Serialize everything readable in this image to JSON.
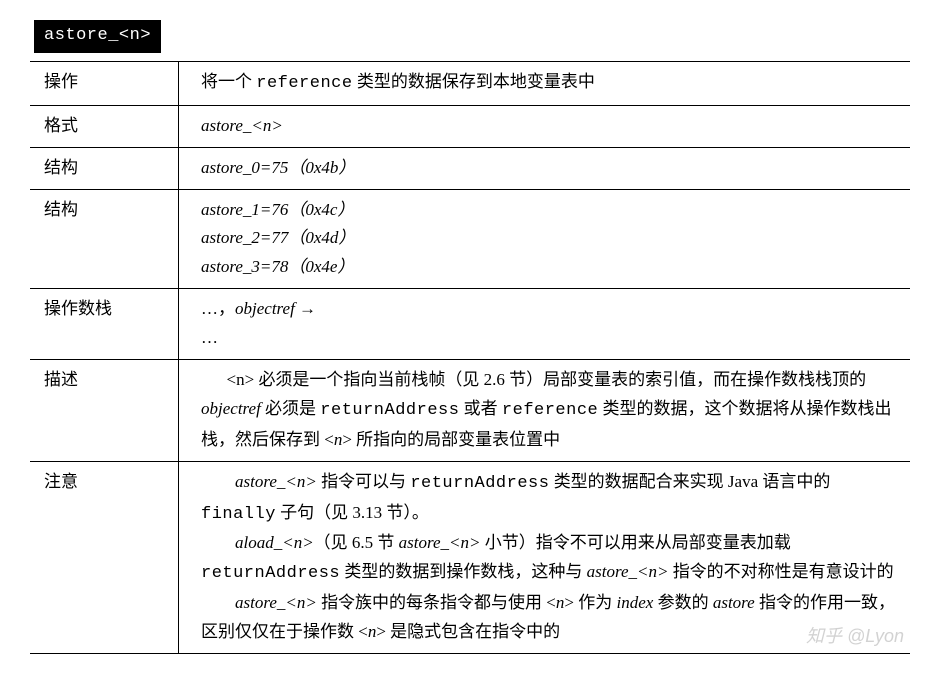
{
  "title": "astore_<n>",
  "rows": {
    "operation": {
      "label": "操作",
      "text_pre": "将一个 ",
      "code": "reference",
      "text_post": " 类型的数据保存到本地变量表中"
    },
    "format": {
      "label": "格式",
      "text": "astore_<n>"
    },
    "struct1": {
      "label": "结构",
      "line": "astore_0=75（0x4b）"
    },
    "struct2": {
      "label": "结构",
      "lines": [
        "astore_1=76（0x4c）",
        "astore_2=77（0x4d）",
        "astore_3=78（0x4e）"
      ]
    },
    "stack": {
      "label": "操作数栈",
      "line1_a": "…，",
      "line1_b": "objectref",
      "line1_c": " →",
      "line2": "…"
    },
    "desc": {
      "label": "描述",
      "p1_a": "<n>",
      "p1_b": " 必须是一个指向当前栈帧（见 2.6 节）局部变量表的索引值，而在操作数栈栈顶的 ",
      "p1_c": "objectref",
      "p1_d": " 必须是 ",
      "p1_e": "returnAddress",
      "p1_f": " 或者 ",
      "p1_g": "reference",
      "p1_h": " 类型的数据，这个数据将从操作数栈出栈，然后保存到 <",
      "p1_i": "n",
      "p1_j": "> 所指向的局部变量表位置中"
    },
    "note": {
      "label": "注意",
      "p1_a": "astore_<n>",
      "p1_b": " 指令可以与 ",
      "p1_c": "returnAddress",
      "p1_d": " 类型的数据配合来实现 Java 语言中的 ",
      "p1_e": "finally",
      "p1_f": " 子句（见 3.13 节）。",
      "p2_a": "aload_<n>",
      "p2_b": "（见 6.5 节 ",
      "p2_c": "astore_<n>",
      "p2_d": " 小节）指令不可以用来从局部变量表加载 ",
      "p2_e": "returnAddress",
      "p2_f": " 类型的数据到操作数栈，这种与 ",
      "p2_g": "astore_<n>",
      "p2_h": " 指令的不对称性是有意设计的",
      "p3_a": "astore_<n>",
      "p3_b": " 指令族中的每条指令都与使用 <",
      "p3_c": "n",
      "p3_d": "> 作为 ",
      "p3_e": "index",
      "p3_f": " 参数的 ",
      "p3_g": "astore",
      "p3_h": " 指令的作用一致，区别仅仅在于操作数 <",
      "p3_i": "n",
      "p3_j": "> 是隐式包含在指令中的"
    }
  },
  "watermark": "知乎 @Lyon"
}
